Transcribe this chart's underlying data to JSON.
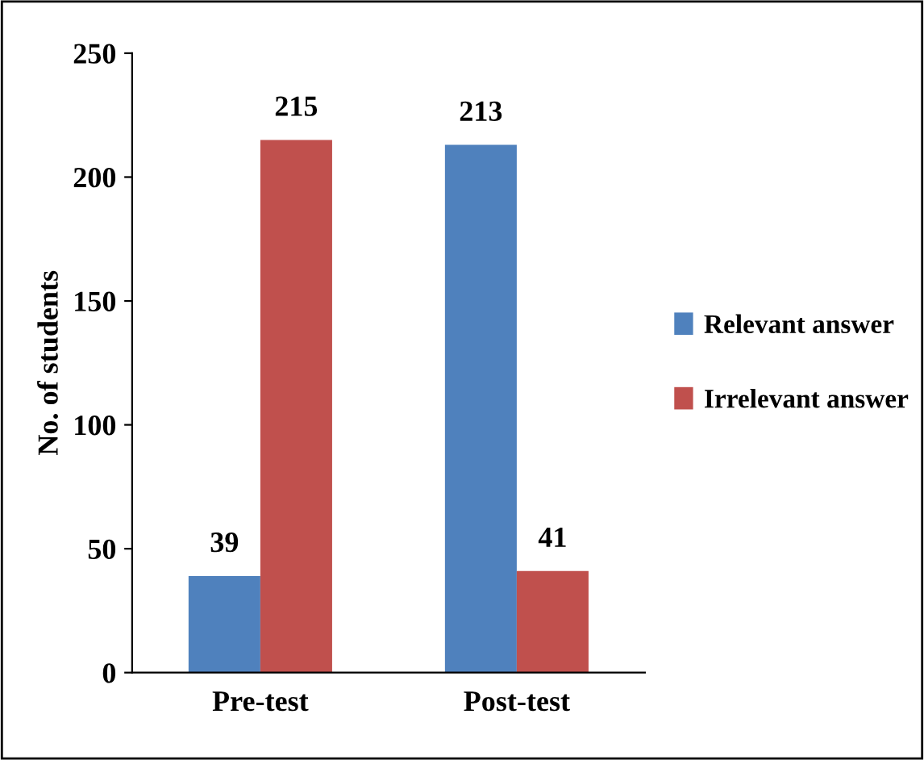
{
  "chart_data": {
    "type": "bar",
    "ylabel": "No. of students",
    "categories": [
      "Pre-test",
      "Post-test"
    ],
    "series": [
      {
        "name": "Relevant answer",
        "color": "#4f81bd",
        "values": [
          39,
          213
        ]
      },
      {
        "name": "Irrelevant answer",
        "color": "#c0504d",
        "values": [
          215,
          41
        ]
      }
    ],
    "ylim": [
      0,
      250
    ],
    "yticks": [
      0,
      50,
      100,
      150,
      200,
      250
    ],
    "data_labels": true,
    "legend": "right",
    "grid": false
  }
}
